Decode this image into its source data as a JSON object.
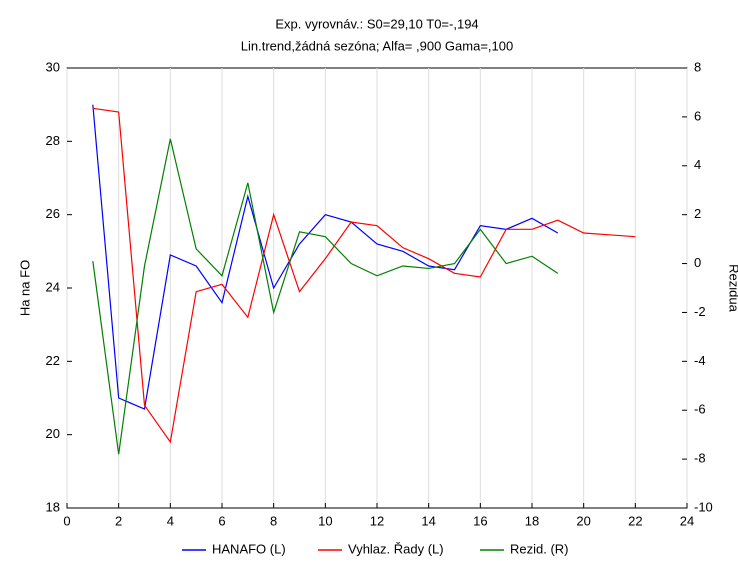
{
  "chart_data": {
    "type": "line",
    "title": "Exp. vyrovnáv.:  S0=29,10 T0=-,194",
    "subtitle": "Lin.trend,žádná sezóna; Alfa=  ,900 Gama=,100",
    "y_label": "Ha na FO",
    "y2_label": "Rezidua",
    "xlim": [
      0,
      24
    ],
    "xticks": [
      0,
      2,
      4,
      6,
      8,
      10,
      12,
      14,
      16,
      18,
      20,
      22,
      24
    ],
    "ylim": [
      18,
      30
    ],
    "yticks": [
      18,
      20,
      22,
      24,
      26,
      28,
      30
    ],
    "y2lim": [
      -10,
      8
    ],
    "y2ticks": [
      -10,
      -8,
      -6,
      -4,
      -2,
      0,
      2,
      4,
      6,
      8
    ],
    "grid": true,
    "series": [
      {
        "name": "HANAFO (L)",
        "color": "#0000ff",
        "x": [
          1,
          2,
          3,
          4,
          5,
          6,
          7,
          8,
          9,
          10,
          11,
          12,
          13,
          14,
          15,
          16,
          17,
          18,
          19
        ],
        "values": [
          29.0,
          21.0,
          20.7,
          24.9,
          24.6,
          23.6,
          26.5,
          24.0,
          25.2,
          26.0,
          25.8,
          25.2,
          25.0,
          24.6,
          24.5,
          25.7,
          25.6,
          25.9,
          25.5
        ]
      },
      {
        "name": "Vyhlaz. Řady (L)",
        "color": "#ff0000",
        "x": [
          1,
          2,
          3,
          4,
          5,
          6,
          7,
          8,
          9,
          10,
          11,
          12,
          13,
          14,
          15,
          16,
          17,
          18,
          19,
          20,
          21,
          22
        ],
        "values": [
          28.9,
          28.8,
          20.8,
          19.8,
          23.9,
          24.1,
          23.2,
          26.0,
          23.9,
          24.8,
          25.8,
          25.7,
          25.1,
          24.8,
          24.4,
          24.3,
          25.6,
          25.6,
          25.85,
          25.5,
          25.45,
          25.4
        ]
      },
      {
        "name": "Rezid. (R)",
        "color": "#008000",
        "axis": "y2",
        "x": [
          1,
          2,
          3,
          4,
          5,
          6,
          7,
          8,
          9,
          10,
          11,
          12,
          13,
          14,
          15,
          16,
          17,
          18,
          19
        ],
        "values": [
          0.1,
          -7.8,
          -0.1,
          5.1,
          0.6,
          -0.5,
          3.3,
          -2.0,
          1.3,
          1.1,
          0.0,
          -0.5,
          -0.1,
          -0.2,
          0.0,
          1.4,
          0.0,
          0.3,
          -0.4
        ]
      }
    ]
  }
}
